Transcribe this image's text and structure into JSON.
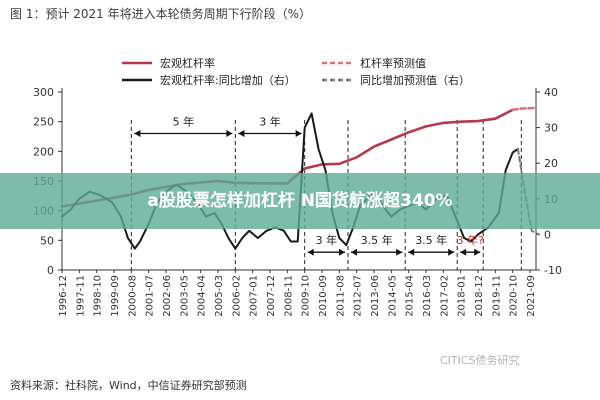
{
  "title": "图 1：预计 2021 年将进入本轮债务周期下行阶段（%）",
  "source": "资料来源：社科院，Wind，中信证券研究部预测",
  "banner": "a股股票怎样加杠杆 N国货航涨超340%",
  "watermark": "CITICS债务研究",
  "chart_data": {
    "type": "line",
    "x": [
      "1996-12",
      "1997-11",
      "1998-10",
      "1999-09",
      "2000-08",
      "2001-07",
      "2002-06",
      "2003-05",
      "2004-04",
      "2005-03",
      "2006-02",
      "2007-01",
      "2007-12",
      "2008-11",
      "2009-10",
      "2010-09",
      "2011-08",
      "2012-07",
      "2013-06",
      "2014-05",
      "2015-04",
      "2016-03",
      "2017-02",
      "2018-01",
      "2018-12",
      "2019-11",
      "2020-10",
      "2021-09"
    ],
    "xlabel": "",
    "ylabel": "",
    "ylim": [
      0,
      300
    ],
    "y2lim": [
      -10,
      40
    ],
    "yticks": [
      "0",
      "50",
      "100",
      "150",
      "200",
      "250",
      "300"
    ],
    "y2ticks": [
      "-10",
      "0",
      "10",
      "20",
      "30",
      "40"
    ],
    "grid": false,
    "legend_position": "top",
    "legend": [
      {
        "label": "宏观杠杆率",
        "color": "#b5394b",
        "dashed": false
      },
      {
        "label": "杠杆率预测值",
        "color": "#d9707e",
        "dashed": true
      },
      {
        "label": "宏观杠杆率:同比增加（右）",
        "color": "#1a1a1a",
        "dashed": false
      },
      {
        "label": "同比增加预测值（右）",
        "color": "#777777",
        "dashed": true
      }
    ],
    "series": [
      {
        "name": "宏观杠杆率",
        "axis": "left",
        "color": "#b5394b",
        "dashed": false,
        "points": [
          [
            0,
            107
          ],
          [
            2,
            117
          ],
          [
            4,
            127
          ],
          [
            5,
            135
          ],
          [
            7,
            145
          ],
          [
            9,
            150
          ],
          [
            10,
            147
          ],
          [
            12,
            146
          ],
          [
            13,
            146
          ],
          [
            14,
            171
          ],
          [
            15,
            178
          ],
          [
            16,
            179
          ],
          [
            17,
            190
          ],
          [
            18,
            208
          ],
          [
            19,
            220
          ],
          [
            20,
            232
          ],
          [
            21,
            242
          ],
          [
            22,
            248
          ],
          [
            23,
            250
          ],
          [
            24,
            251
          ],
          [
            25,
            255
          ],
          [
            26,
            270
          ]
        ]
      },
      {
        "name": "杠杆率预测值",
        "axis": "left",
        "color": "#d9707e",
        "dashed": true,
        "points": [
          [
            26,
            270
          ],
          [
            26.5,
            272
          ],
          [
            27.2,
            273
          ]
        ]
      },
      {
        "name": "宏观杠杆率:同比增加（右）",
        "axis": "right",
        "color": "#1a1a1a",
        "dashed": false,
        "points": [
          [
            0,
            5
          ],
          [
            0.5,
            7
          ],
          [
            1,
            10
          ],
          [
            1.6,
            12
          ],
          [
            2.2,
            11
          ],
          [
            2.9,
            9
          ],
          [
            3.4,
            5
          ],
          [
            3.8,
            -1
          ],
          [
            4.2,
            -4
          ],
          [
            4.5,
            -2
          ],
          [
            5,
            3
          ],
          [
            5.5,
            9
          ],
          [
            6,
            12
          ],
          [
            6.6,
            14
          ],
          [
            7.2,
            12
          ],
          [
            7.8,
            9
          ],
          [
            8.3,
            5
          ],
          [
            8.8,
            6
          ],
          [
            9.2,
            3
          ],
          [
            9.6,
            -1
          ],
          [
            10,
            -4
          ],
          [
            10.4,
            -1
          ],
          [
            10.8,
            1
          ],
          [
            11.3,
            -1
          ],
          [
            11.8,
            1
          ],
          [
            12.3,
            2
          ],
          [
            12.8,
            1
          ],
          [
            13.2,
            -2
          ],
          [
            13.6,
            -2
          ],
          [
            14,
            30
          ],
          [
            14.4,
            34
          ],
          [
            14.8,
            24
          ],
          [
            15.2,
            18
          ],
          [
            15.6,
            6
          ],
          [
            16,
            -1
          ],
          [
            16.4,
            -3
          ],
          [
            16.8,
            2
          ],
          [
            17.2,
            8
          ],
          [
            17.6,
            10
          ],
          [
            18,
            12
          ],
          [
            18.5,
            8
          ],
          [
            19,
            5
          ],
          [
            19.5,
            7
          ],
          [
            20,
            8
          ],
          [
            20.5,
            9
          ],
          [
            21,
            7
          ],
          [
            21.6,
            10
          ],
          [
            22.2,
            11
          ],
          [
            22.7,
            5
          ],
          [
            23.2,
            -1
          ],
          [
            23.6,
            -2
          ],
          [
            24,
            0
          ],
          [
            24.6,
            2
          ],
          [
            25.2,
            6
          ],
          [
            25.6,
            18
          ],
          [
            26,
            23
          ],
          [
            26.3,
            24
          ]
        ]
      },
      {
        "name": "同比增加预测值（右）",
        "axis": "right",
        "color": "#777777",
        "dashed": true,
        "points": [
          [
            26.3,
            24
          ],
          [
            26.7,
            12
          ],
          [
            27.1,
            1
          ],
          [
            27.5,
            0
          ]
        ]
      }
    ],
    "period_markers": [
      26.5,
      4,
      10,
      14,
      16.5,
      19.8,
      22.8,
      24.3
    ],
    "annotations": [
      {
        "label": "5 年",
        "from": 4,
        "to": 10,
        "y_left": 230
      },
      {
        "label": "3 年",
        "from": 10,
        "to": 14,
        "y_left": 230
      },
      {
        "label": "3 年",
        "from": 14,
        "to": 16.5,
        "y_left": 30
      },
      {
        "label": "3.5 年",
        "from": 16.5,
        "to": 19.8,
        "y_left": 30
      },
      {
        "label": "3.5 年",
        "from": 19.8,
        "to": 22.8,
        "y_left": 30
      },
      {
        "label": "3 年?",
        "from": 22.8,
        "to": 24.3,
        "y_left": 30,
        "highlight": true
      }
    ]
  }
}
